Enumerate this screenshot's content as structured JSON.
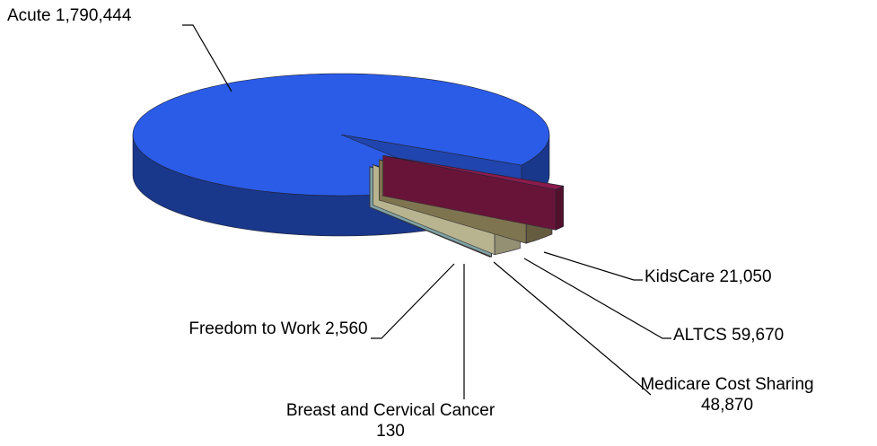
{
  "chart_data": {
    "type": "pie",
    "three_d": true,
    "categories": [
      "Acute",
      "KidsCare",
      "ALTCS",
      "Medicare Cost Sharing",
      "Breast and Cervical Cancer",
      "Freedom to Work"
    ],
    "values": [
      1790444,
      21050,
      59670,
      48870,
      130,
      2560
    ],
    "value_labels": [
      "1,790,444",
      "21,050",
      "59,670",
      "48,870",
      "130",
      "2,560"
    ],
    "colors": [
      "#2a5ce8",
      "#8b1a4a",
      "#a89a6a",
      "#f5f0c0",
      "#a8d8dc",
      "#7a2a2a"
    ]
  }
}
